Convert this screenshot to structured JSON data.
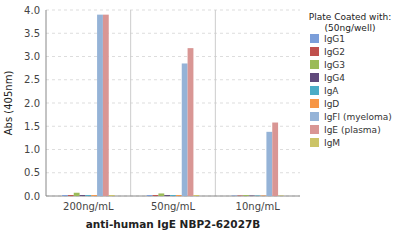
{
  "chart_data": {
    "type": "bar",
    "xlabel": "anti-human IgE NBP2-62027B",
    "ylabel": "Abs (405nm)",
    "legend_title": "Plate Coated with:\n(50ng/well)",
    "categories": [
      "200ng/mL",
      "50ng/mL",
      "10ng/mL"
    ],
    "series": [
      {
        "name": "IgG1",
        "color": "#7B9ED9",
        "values": [
          0.02,
          0.02,
          0.01
        ]
      },
      {
        "name": "IgG2",
        "color": "#C0504D",
        "values": [
          0.02,
          0.02,
          0.01
        ]
      },
      {
        "name": "IgG3",
        "color": "#9BBB59",
        "values": [
          0.07,
          0.055,
          0.02
        ]
      },
      {
        "name": "IgG4",
        "color": "#604A7B",
        "values": [
          0.02,
          0.02,
          0.01
        ]
      },
      {
        "name": "IgA",
        "color": "#4BACC6",
        "values": [
          0.02,
          0.02,
          0.01
        ]
      },
      {
        "name": "IgD",
        "color": "#F79646",
        "values": [
          0.02,
          0.02,
          0.01
        ]
      },
      {
        "name": "IgFl (myeloma)",
        "color": "#95B3D7",
        "values": [
          3.9,
          2.85,
          1.38
        ]
      },
      {
        "name": "IgE (plasma)",
        "color": "#D99694",
        "values": [
          3.9,
          3.18,
          1.58
        ]
      },
      {
        "name": "IgM",
        "color": "#CCC467",
        "values": [
          0.02,
          0.02,
          0.01
        ]
      }
    ],
    "ylim": [
      0,
      4.0
    ],
    "yticks": [
      {
        "value": 0,
        "label": "0.0"
      },
      0.5,
      {
        "value": 1,
        "label": "1.0"
      },
      1.5,
      {
        "value": 2,
        "label": "2.0"
      },
      2.5,
      {
        "value": 3,
        "label": "3.0"
      },
      3.5,
      {
        "value": 4,
        "label": "4.0"
      }
    ],
    "grid": true,
    "legend": "right"
  }
}
